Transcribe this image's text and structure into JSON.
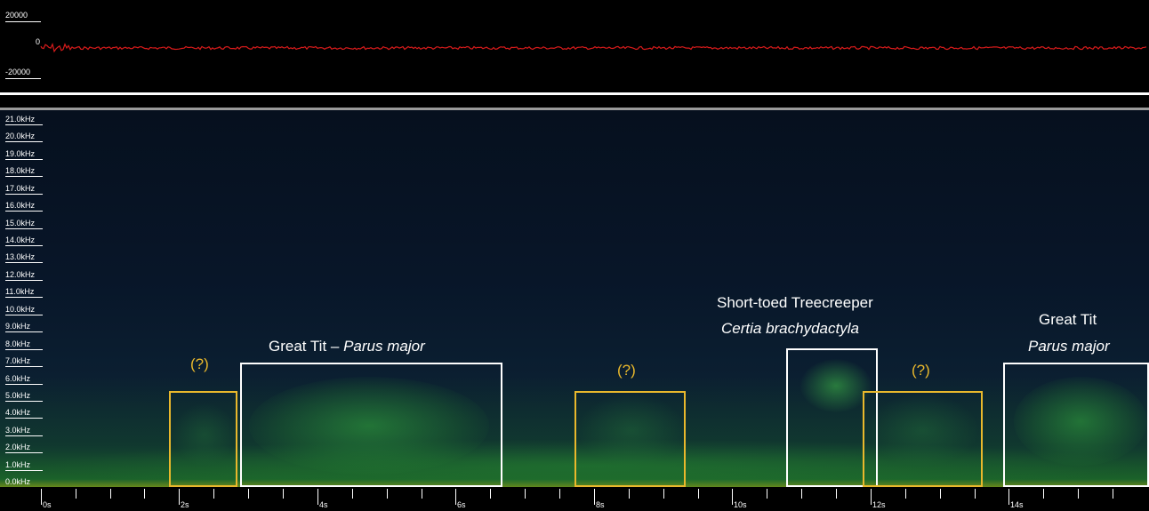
{
  "waveform": {
    "amplitude_labels": [
      "20000",
      "0",
      "-20000"
    ],
    "trace_color": "#d81b1b"
  },
  "spectrogram": {
    "frequency_labels": [
      "21.0kHz",
      "20.0kHz",
      "19.0kHz",
      "18.0kHz",
      "17.0kHz",
      "16.0kHz",
      "15.0kHz",
      "14.0kHz",
      "13.0kHz",
      "12.0kHz",
      "11.0kHz",
      "10.0kHz",
      "9.0kHz",
      "8.0kHz",
      "7.0kHz",
      "6.0kHz",
      "5.0kHz",
      "4.0kHz",
      "3.0kHz",
      "2.0kHz",
      "1.0kHz",
      "0.0kHz"
    ],
    "annotations": {
      "unknown_1": "(?)",
      "great_tit_common": "Great Tit – ",
      "great_tit_latin": "Parus major",
      "unknown_2": "(?)",
      "treecreeper_common": "Short-toed Treecreeper",
      "treecreeper_latin": "Certia brachydactyla",
      "unknown_3": "(?)",
      "great_tit_2_common": "Great Tit",
      "great_tit_2_latin": "Parus major"
    },
    "box_colors": {
      "identified": "#ffffff",
      "unknown": "#e9b82c"
    }
  },
  "time_axis": {
    "labels": [
      "0s",
      "2s",
      "4s",
      "6s",
      "8s",
      "10s",
      "12s",
      "14s"
    ]
  }
}
